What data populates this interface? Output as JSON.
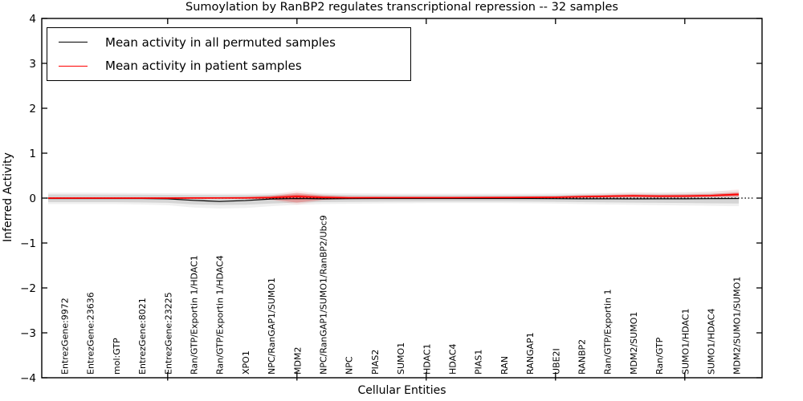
{
  "title": "Sumoylation by RanBP2 regulates transcriptional repression -- 32 samples",
  "legend": {
    "items": [
      {
        "label": "Mean activity in all permuted samples",
        "color": "#000000"
      },
      {
        "label": "Mean activity in patient samples",
        "color": "#ff0000"
      }
    ]
  },
  "chart_data": {
    "type": "line",
    "title": "Sumoylation by RanBP2 regulates transcriptional repression -- 32 samples",
    "xlabel": "Cellular Entities",
    "ylabel": "Inferred Activity",
    "ylim": [
      -4,
      4
    ],
    "yticks": [
      4,
      3,
      2,
      1,
      0,
      -1,
      -2,
      -3,
      -4
    ],
    "ytick_labels": [
      "4",
      "3",
      "2",
      "1",
      "0",
      "−1",
      "−2",
      "−3",
      "−4"
    ],
    "grid": false,
    "legend_position": "upper left",
    "zero_line": true,
    "categories": [
      "EntrezGene:9972",
      "EntrezGene:23636",
      "mol:GTP",
      "EntrezGene:8021",
      "EntrezGene:23225",
      "Ran/GTP/Exportin 1/HDAC1",
      "Ran/GTP/Exportin 1/HDAC4",
      "XPO1",
      "NPC/RanGAP1/SUMO1",
      "MDM2",
      "NPC/RanGAP1/SUMO1/RanBP2/Ubc9",
      "NPC",
      "PIAS2",
      "SUMO1",
      "HDAC1",
      "HDAC4",
      "PIAS1",
      "RAN",
      "RANGAP1",
      "UBE2I",
      "RANBP2",
      "Ran/GTP/Exportin 1",
      "MDM2/SUMO1",
      "Ran/GTP",
      "SUMO1/HDAC1",
      "SUMO1/HDAC4",
      "MDM2/SUMO1/SUMO1"
    ],
    "series": [
      {
        "name": "Mean activity in all permuted samples",
        "color": "#000000",
        "line_width": 1.2,
        "band_color_rgb": "0,0,0",
        "values": [
          -0.01,
          -0.01,
          -0.01,
          -0.01,
          -0.015,
          -0.05,
          -0.075,
          -0.055,
          -0.02,
          -0.01,
          -0.015,
          -0.012,
          -0.01,
          -0.01,
          -0.01,
          -0.01,
          -0.01,
          -0.01,
          -0.01,
          -0.012,
          -0.015,
          -0.015,
          -0.018,
          -0.015,
          -0.015,
          -0.012,
          -0.01
        ],
        "band_upper": [
          0.08,
          0.08,
          0.078,
          0.075,
          0.072,
          0.068,
          0.065,
          0.065,
          0.072,
          0.08,
          0.075,
          0.072,
          0.068,
          0.065,
          0.065,
          0.065,
          0.065,
          0.065,
          0.065,
          0.068,
          0.072,
          0.076,
          0.08,
          0.085,
          0.09,
          0.1,
          0.115
        ],
        "band_lower": [
          -0.09,
          -0.09,
          -0.09,
          -0.095,
          -0.105,
          -0.14,
          -0.155,
          -0.148,
          -0.12,
          -0.1,
          -0.09,
          -0.085,
          -0.08,
          -0.078,
          -0.075,
          -0.075,
          -0.075,
          -0.075,
          -0.078,
          -0.082,
          -0.09,
          -0.095,
          -0.1,
          -0.105,
          -0.11,
          -0.115,
          -0.12
        ]
      },
      {
        "name": "Mean activity in patient samples",
        "color": "#ff0000",
        "line_width": 1.7,
        "band_color_rgb": "255,0,0",
        "values": [
          0,
          0,
          0,
          0,
          0,
          0.002,
          0.003,
          0.005,
          0.012,
          0.035,
          0.015,
          0.008,
          0.01,
          0.01,
          0.01,
          0.01,
          0.012,
          0.013,
          0.015,
          0.018,
          0.03,
          0.04,
          0.05,
          0.042,
          0.045,
          0.055,
          0.08
        ],
        "band_upper": [
          0.012,
          0.012,
          0.012,
          0.012,
          0.012,
          0.013,
          0.014,
          0.018,
          0.045,
          0.115,
          0.055,
          0.028,
          0.024,
          0.022,
          0.022,
          0.022,
          0.024,
          0.026,
          0.03,
          0.035,
          0.06,
          0.07,
          0.085,
          0.072,
          0.078,
          0.09,
          0.13
        ],
        "band_lower": [
          -0.012,
          -0.012,
          -0.012,
          -0.012,
          -0.012,
          -0.01,
          -0.01,
          -0.012,
          -0.03,
          -0.1,
          -0.035,
          -0.015,
          -0.006,
          -0.004,
          -0.004,
          -0.004,
          -0.004,
          -0.003,
          -0.002,
          0.0,
          0.006,
          0.012,
          0.018,
          0.012,
          0.015,
          0.022,
          0.032
        ]
      }
    ]
  }
}
